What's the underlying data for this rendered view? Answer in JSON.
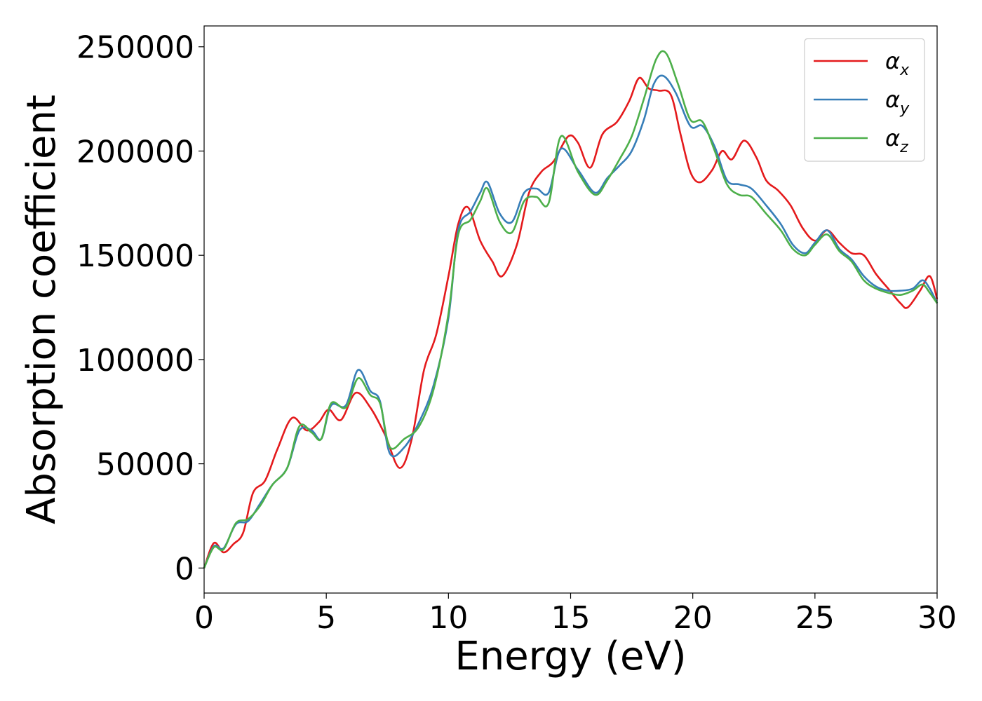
{
  "chart_data": {
    "type": "line",
    "title": "",
    "xlabel": "Energy (eV)",
    "ylabel": "Absorption coefficient",
    "xlim": [
      0,
      30
    ],
    "ylim": [
      -12000,
      260000
    ],
    "xticks": [
      0,
      5,
      10,
      15,
      20,
      25,
      30
    ],
    "yticks": [
      0,
      50000,
      100000,
      150000,
      200000,
      250000
    ],
    "grid": false,
    "legend_position": "top-right",
    "legend": [
      {
        "symbol": "α",
        "subscript": "x",
        "color": "#e41a1c"
      },
      {
        "symbol": "α",
        "subscript": "y",
        "color": "#377eb8"
      },
      {
        "symbol": "α",
        "subscript": "z",
        "color": "#4daf4a"
      }
    ],
    "series": [
      {
        "name": "αx",
        "color": "#e41a1c",
        "points": [
          [
            0,
            0
          ],
          [
            0.4,
            12000
          ],
          [
            0.8,
            7500
          ],
          [
            1.2,
            11500
          ],
          [
            1.6,
            17000
          ],
          [
            2,
            36000
          ],
          [
            2.5,
            42000
          ],
          [
            3,
            57000
          ],
          [
            3.6,
            72000
          ],
          [
            4.2,
            66000
          ],
          [
            4.7,
            70000
          ],
          [
            5.1,
            76000
          ],
          [
            5.6,
            71000
          ],
          [
            6.2,
            84000
          ],
          [
            6.8,
            77000
          ],
          [
            7.4,
            64000
          ],
          [
            8,
            48000
          ],
          [
            8.5,
            62000
          ],
          [
            9,
            95000
          ],
          [
            9.5,
            112000
          ],
          [
            10,
            140000
          ],
          [
            10.4,
            165000
          ],
          [
            10.8,
            173000
          ],
          [
            11.3,
            157000
          ],
          [
            11.8,
            147000
          ],
          [
            12.2,
            140000
          ],
          [
            12.8,
            155000
          ],
          [
            13.3,
            180000
          ],
          [
            13.8,
            190000
          ],
          [
            14.3,
            195000
          ],
          [
            14.9,
            207000
          ],
          [
            15.3,
            204000
          ],
          [
            15.8,
            192000
          ],
          [
            16.3,
            208000
          ],
          [
            16.9,
            214000
          ],
          [
            17.4,
            224000
          ],
          [
            17.8,
            235000
          ],
          [
            18.2,
            230000
          ],
          [
            18.6,
            229000
          ],
          [
            19.1,
            227000
          ],
          [
            19.5,
            208000
          ],
          [
            19.9,
            190000
          ],
          [
            20.3,
            185000
          ],
          [
            20.8,
            191000
          ],
          [
            21.2,
            200000
          ],
          [
            21.6,
            196000
          ],
          [
            22.1,
            205000
          ],
          [
            22.6,
            197000
          ],
          [
            23,
            186000
          ],
          [
            23.5,
            181000
          ],
          [
            24,
            174000
          ],
          [
            24.5,
            163000
          ],
          [
            25,
            157000
          ],
          [
            25.5,
            162000
          ],
          [
            26,
            156000
          ],
          [
            26.5,
            151000
          ],
          [
            27,
            150000
          ],
          [
            27.5,
            141000
          ],
          [
            28,
            134000
          ],
          [
            28.5,
            127000
          ],
          [
            28.8,
            125000
          ],
          [
            29.3,
            133000
          ],
          [
            29.7,
            140000
          ],
          [
            30,
            129000
          ]
        ]
      },
      {
        "name": "αy",
        "color": "#377eb8",
        "points": [
          [
            0,
            0
          ],
          [
            0.4,
            10500
          ],
          [
            0.8,
            9500
          ],
          [
            1.3,
            21000
          ],
          [
            1.8,
            22500
          ],
          [
            2.3,
            31000
          ],
          [
            2.8,
            40000
          ],
          [
            3.4,
            48000
          ],
          [
            3.9,
            66000
          ],
          [
            4.4,
            66000
          ],
          [
            4.8,
            62000
          ],
          [
            5.2,
            78000
          ],
          [
            5.8,
            78000
          ],
          [
            6.3,
            95000
          ],
          [
            6.8,
            85000
          ],
          [
            7.2,
            80000
          ],
          [
            7.6,
            55000
          ],
          [
            8.2,
            58000
          ],
          [
            8.8,
            70000
          ],
          [
            9.4,
            88000
          ],
          [
            10,
            120000
          ],
          [
            10.4,
            162000
          ],
          [
            10.9,
            171000
          ],
          [
            11.3,
            180000
          ],
          [
            11.6,
            185000
          ],
          [
            12.1,
            170000
          ],
          [
            12.6,
            166000
          ],
          [
            13.1,
            180000
          ],
          [
            13.6,
            182000
          ],
          [
            14.1,
            180000
          ],
          [
            14.6,
            201000
          ],
          [
            15.3,
            191000
          ],
          [
            16,
            180000
          ],
          [
            16.5,
            187000
          ],
          [
            17,
            193000
          ],
          [
            17.5,
            200000
          ],
          [
            18,
            215000
          ],
          [
            18.4,
            232000
          ],
          [
            18.8,
            236000
          ],
          [
            19.3,
            228000
          ],
          [
            19.9,
            212000
          ],
          [
            20.4,
            212000
          ],
          [
            20.9,
            202000
          ],
          [
            21.4,
            186000
          ],
          [
            21.9,
            184000
          ],
          [
            22.4,
            182000
          ],
          [
            23,
            174000
          ],
          [
            23.6,
            165000
          ],
          [
            24.1,
            155000
          ],
          [
            24.6,
            151000
          ],
          [
            25,
            156000
          ],
          [
            25.5,
            162000
          ],
          [
            26,
            153000
          ],
          [
            26.5,
            148000
          ],
          [
            27,
            140000
          ],
          [
            27.5,
            135000
          ],
          [
            28,
            133000
          ],
          [
            28.5,
            133000
          ],
          [
            29,
            134000
          ],
          [
            29.4,
            138000
          ],
          [
            29.7,
            134000
          ],
          [
            30,
            127000
          ]
        ]
      },
      {
        "name": "αz",
        "color": "#4daf4a",
        "points": [
          [
            0,
            0
          ],
          [
            0.4,
            10000
          ],
          [
            0.8,
            9000
          ],
          [
            1.3,
            21500
          ],
          [
            1.8,
            23500
          ],
          [
            2.3,
            30000
          ],
          [
            2.8,
            40000
          ],
          [
            3.4,
            48000
          ],
          [
            3.9,
            68000
          ],
          [
            4.4,
            65000
          ],
          [
            4.8,
            62000
          ],
          [
            5.2,
            79000
          ],
          [
            5.8,
            77000
          ],
          [
            6.3,
            91000
          ],
          [
            6.8,
            83000
          ],
          [
            7.2,
            79000
          ],
          [
            7.6,
            58000
          ],
          [
            8.2,
            62000
          ],
          [
            8.8,
            68000
          ],
          [
            9.4,
            86000
          ],
          [
            10,
            122000
          ],
          [
            10.4,
            160000
          ],
          [
            10.9,
            167000
          ],
          [
            11.3,
            176000
          ],
          [
            11.6,
            182000
          ],
          [
            12.1,
            166000
          ],
          [
            12.6,
            161000
          ],
          [
            13.1,
            176000
          ],
          [
            13.6,
            178000
          ],
          [
            14.1,
            175000
          ],
          [
            14.6,
            207000
          ],
          [
            15.3,
            190000
          ],
          [
            16,
            179000
          ],
          [
            16.5,
            186000
          ],
          [
            17,
            196000
          ],
          [
            17.5,
            207000
          ],
          [
            18,
            225000
          ],
          [
            18.5,
            244000
          ],
          [
            18.9,
            247000
          ],
          [
            19.4,
            232000
          ],
          [
            19.9,
            215000
          ],
          [
            20.4,
            214000
          ],
          [
            20.9,
            200000
          ],
          [
            21.4,
            184000
          ],
          [
            21.9,
            179000
          ],
          [
            22.4,
            178000
          ],
          [
            23,
            170000
          ],
          [
            23.6,
            162000
          ],
          [
            24.1,
            153000
          ],
          [
            24.6,
            150000
          ],
          [
            25,
            155000
          ],
          [
            25.5,
            160000
          ],
          [
            26,
            152000
          ],
          [
            26.5,
            147000
          ],
          [
            27,
            138000
          ],
          [
            27.5,
            134000
          ],
          [
            28,
            132000
          ],
          [
            28.5,
            131000
          ],
          [
            29,
            133000
          ],
          [
            29.4,
            136000
          ],
          [
            29.7,
            132000
          ],
          [
            30,
            127000
          ]
        ]
      }
    ]
  }
}
